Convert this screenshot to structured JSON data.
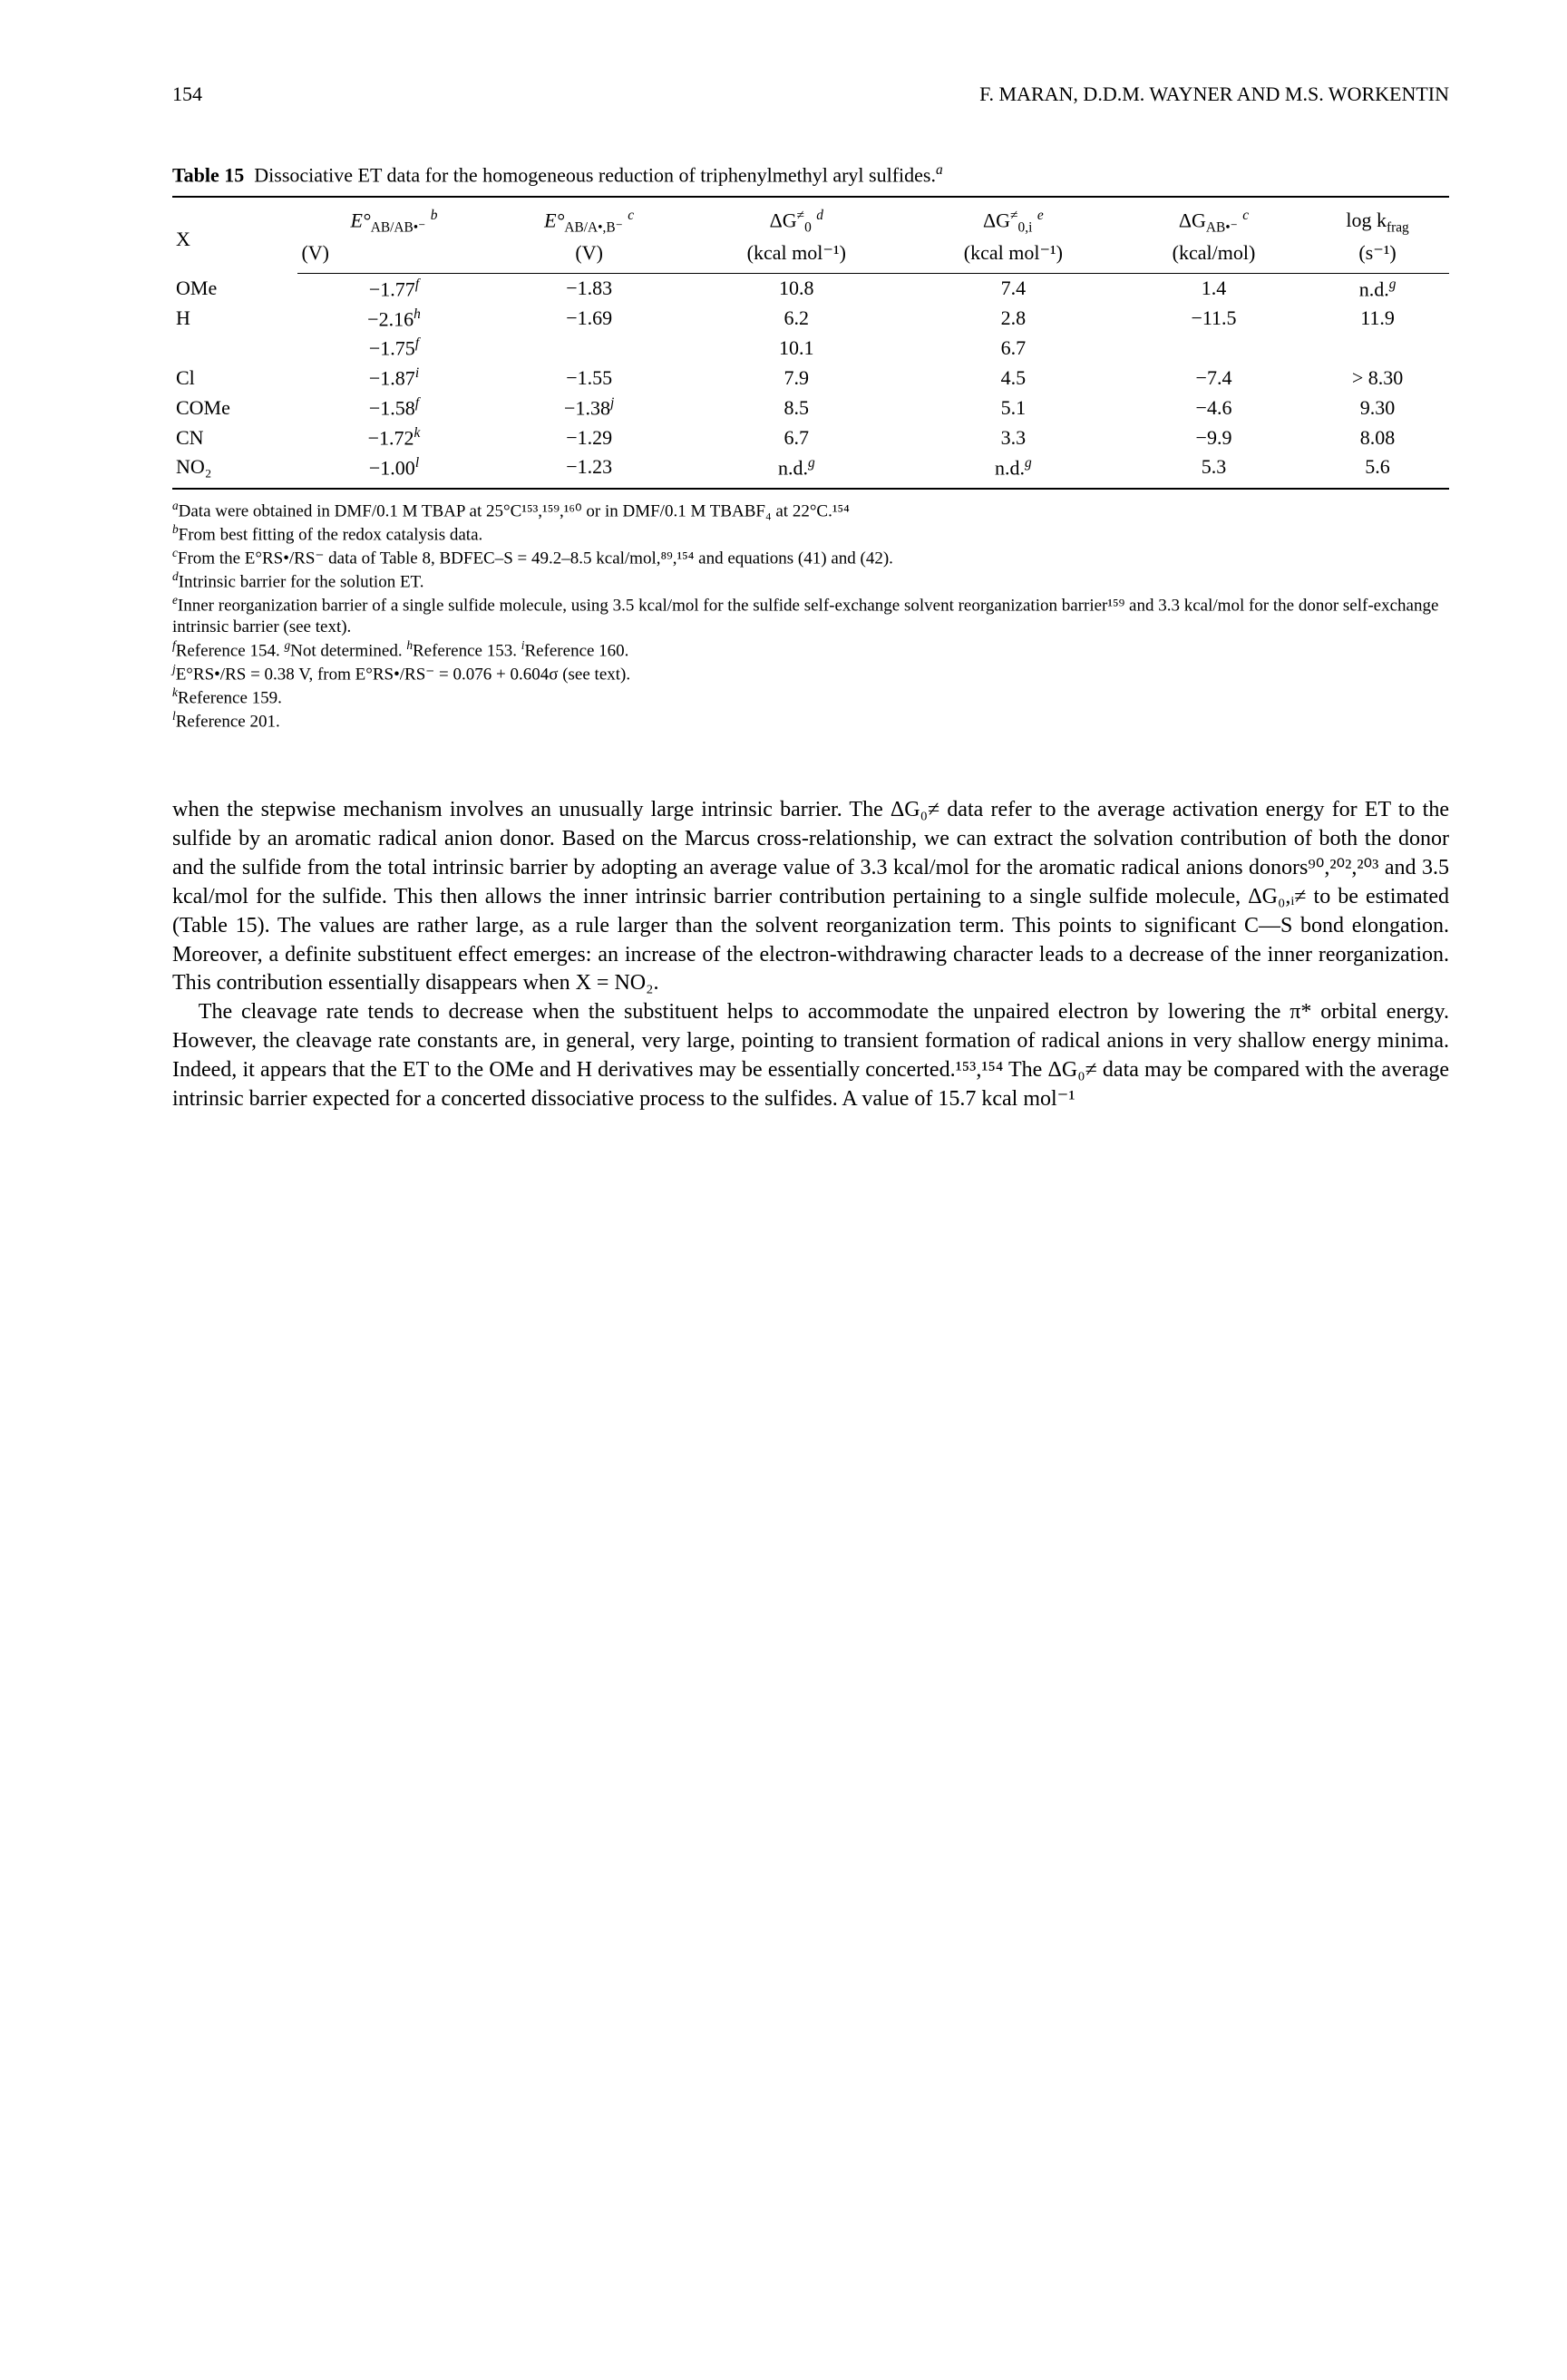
{
  "header": {
    "page_number": "154",
    "authors": "F. MARAN, D.D.M. WAYNER AND M.S. WORKENTIN"
  },
  "table": {
    "caption_label": "Table 15",
    "caption_text": "Dissociative ET data for the homogeneous reduction of triphenylmethyl aryl sulfides.",
    "caption_sup": "a",
    "columns": {
      "c0": "X",
      "c1_top": "E°",
      "c1_sub": "AB/AB•⁻",
      "c1_sup": "b",
      "c1_bot": "(V)",
      "c2_top": "E°",
      "c2_sub": "AB/A•,B⁻",
      "c2_sup": "c",
      "c2_bot": "(V)",
      "c3_top": "ΔG",
      "c3_sup0": "≠",
      "c3_sub0": "0",
      "c3_sup": "d",
      "c3_bot": "(kcal mol⁻¹)",
      "c4_top": "ΔG",
      "c4_sup0": "≠",
      "c4_sub0": "0,i",
      "c4_sup": "e",
      "c4_bot": "(kcal mol⁻¹)",
      "c5_top": "ΔG",
      "c5_sub": "AB•⁻",
      "c5_sup": "c",
      "c5_bot": "(kcal/mol)",
      "c6_top": "log k",
      "c6_sub": "frag",
      "c6_bot": "(s⁻¹)"
    },
    "rows": [
      {
        "x": "OMe",
        "c1": "−1.77",
        "c1s": "f",
        "c2": "−1.83",
        "c3": "10.8",
        "c4": "7.4",
        "c5": "1.4",
        "c6": "n.d.",
        "c6s": "g"
      },
      {
        "x": "H",
        "c1": "−2.16",
        "c1s": "h",
        "c2": "−1.69",
        "c3": "6.2",
        "c4": "2.8",
        "c5": "−11.5",
        "c6": "11.9"
      },
      {
        "x": "",
        "c1": "−1.75",
        "c1s": "f",
        "c2": "",
        "c3": "10.1",
        "c4": "6.7",
        "c5": "",
        "c6": ""
      },
      {
        "x": "Cl",
        "c1": "−1.87",
        "c1s": "i",
        "c2": "−1.55",
        "c3": "7.9",
        "c4": "4.5",
        "c5": "−7.4",
        "c6": "> 8.30"
      },
      {
        "x": "COMe",
        "c1": "−1.58",
        "c1s": "f",
        "c2": "−1.38",
        "c2s": "j",
        "c3": "8.5",
        "c4": "5.1",
        "c5": "−4.6",
        "c6": "9.30"
      },
      {
        "x": "CN",
        "c1": "−1.72",
        "c1s": "k",
        "c2": "−1.29",
        "c3": "6.7",
        "c4": "3.3",
        "c5": "−9.9",
        "c6": "8.08"
      },
      {
        "x": "NO₂",
        "c1": "−1.00",
        "c1s": "l",
        "c2": "−1.23",
        "c3": "n.d.",
        "c3s": "g",
        "c4": "n.d.",
        "c4s": "g",
        "c5": "5.3",
        "c6": "5.6"
      }
    ]
  },
  "footnotes": {
    "a": "Data were obtained in DMF/0.1 M TBAP at 25°C¹⁵³,¹⁵⁹,¹⁶⁰ or in DMF/0.1 M TBABF₄ at 22°C.¹⁵⁴",
    "b": "From best fitting of the redox catalysis data.",
    "c": "From the E°RS•/RS⁻ data of Table 8, BDFEC–S = 49.2–8.5 kcal/mol,⁸⁹,¹⁵⁴ and equations (41) and (42).",
    "d": "Intrinsic barrier for the solution ET.",
    "e": "Inner reorganization barrier of a single sulfide molecule, using 3.5 kcal/mol for the sulfide self-exchange solvent reorganization barrier¹⁵⁹ and 3.3 kcal/mol for the donor self-exchange intrinsic barrier (see text).",
    "f": "Reference 154. ",
    "g": "Not determined. ",
    "h": "Reference 153. ",
    "i": "Reference 160.",
    "j": "E°RS•/RS = 0.38 V, from E°RS•/RS⁻ = 0.076 + 0.604σ (see text).",
    "k": "Reference 159.",
    "l": "Reference 201."
  },
  "body": {
    "p1": "when the stepwise mechanism involves an unusually large intrinsic barrier. The ΔG₀≠ data refer to the average activation energy for ET to the sulfide by an aromatic radical anion donor. Based on the Marcus cross-relationship, we can extract the solvation contribution of both the donor and the sulfide from the total intrinsic barrier by adopting an average value of 3.3 kcal/mol for the aromatic radical anions donors⁹⁰,²⁰²,²⁰³ and 3.5 kcal/mol for the sulfide. This then allows the inner intrinsic barrier contribution pertaining to a single sulfide molecule, ΔG₀,ᵢ≠ to be estimated (Table 15). The values are rather large, as a rule larger than the solvent reorganization term. This points to significant C—S bond elongation. Moreover, a definite substituent effect emerges: an increase of the electron-withdrawing character leads to a decrease of the inner reorganization. This contribution essentially disappears when X = NO₂.",
    "p2": "The cleavage rate tends to decrease when the substituent helps to accommodate the unpaired electron by lowering the π* orbital energy. However, the cleavage rate constants are, in general, very large, pointing to transient formation of radical anions in very shallow energy minima. Indeed, it appears that the ET to the OMe and H derivatives may be essentially concerted.¹⁵³,¹⁵⁴ The ΔG₀≠ data may be compared with the average intrinsic barrier expected for a concerted dissociative process to the sulfides. A value of 15.7 kcal mol⁻¹"
  }
}
